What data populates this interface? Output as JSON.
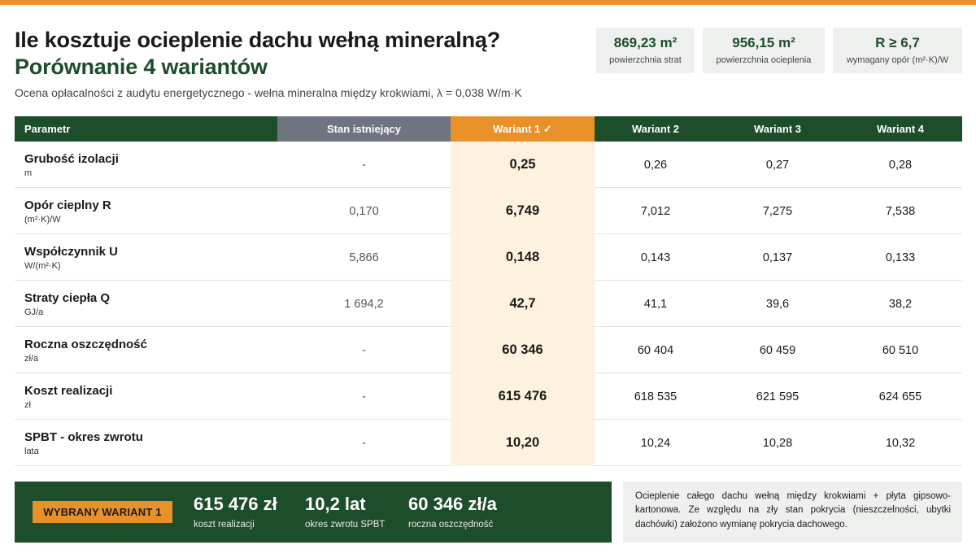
{
  "header": {
    "title": "Ile kosztuje ocieplenie dachu wełną mineralną?",
    "subtitle_title": "Porównanie 4 wariantów",
    "description": "Ocena opłacalności z audytu energetycznego - wełna mineralna między krokwiami, λ = 0,038 W/m·K"
  },
  "stats": [
    {
      "value": "869,23 m²",
      "label": "powierzchnia strat"
    },
    {
      "value": "956,15 m²",
      "label": "powierzchnia ocieplenia"
    },
    {
      "value": "R ≥ 6,7",
      "label": "wymagany opór (m²·K)/W"
    }
  ],
  "table": {
    "headers": {
      "param": "Parametr",
      "stan": "Stan istniejący",
      "w1": "Wariant 1 ✓",
      "w2": "Wariant 2",
      "w3": "Wariant 3",
      "w4": "Wariant 4"
    },
    "rows": [
      {
        "name": "Grubość izolacji",
        "unit": "m",
        "stan": "-",
        "w1": "0,25",
        "w2": "0,26",
        "w3": "0,27",
        "w4": "0,28"
      },
      {
        "name": "Opór cieplny R",
        "unit": "(m²·K)/W",
        "stan": "0,170",
        "w1": "6,749",
        "w2": "7,012",
        "w3": "7,275",
        "w4": "7,538"
      },
      {
        "name": "Współczynnik U",
        "unit": "W/(m²·K)",
        "stan": "5,866",
        "w1": "0,148",
        "w2": "0,143",
        "w3": "0,137",
        "w4": "0,133"
      },
      {
        "name": "Straty ciepła Q",
        "unit": "GJ/a",
        "stan": "1 694,2",
        "w1": "42,7",
        "w2": "41,1",
        "w3": "39,6",
        "w4": "38,2"
      },
      {
        "name": "Roczna oszczędność",
        "unit": "zł/a",
        "stan": "-",
        "w1": "60 346",
        "w2": "60 404",
        "w3": "60 459",
        "w4": "60 510"
      },
      {
        "name": "Koszt realizacji",
        "unit": "zł",
        "stan": "-",
        "w1": "615 476",
        "w2": "618 535",
        "w3": "621 595",
        "w4": "624 655"
      },
      {
        "name": "SPBT - okres zwrotu",
        "unit": "lata",
        "stan": "-",
        "w1": "10,20",
        "w2": "10,24",
        "w3": "10,28",
        "w4": "10,32"
      }
    ]
  },
  "summary": {
    "badge": "WYBRANY WARIANT 1",
    "items": [
      {
        "value": "615 476 zł",
        "label": "koszt realizacji"
      },
      {
        "value": "10,2 lat",
        "label": "okres zwrotu SPBT"
      },
      {
        "value": "60 346 zł/a",
        "label": "roczna oszczędność"
      }
    ]
  },
  "note": "Ocieplenie całego dachu wełną między krokwiami + płyta gipsowo-kartonowa. Ze względu na zły stan pokrycia (nieszczelności, ubytki dachówki) założono wymianę pokrycia dachowego.",
  "colors": {
    "accent": "#e8912b",
    "brand_green": "#1e4d2b",
    "existing_gray": "#6e7480",
    "highlight_bg": "#fdf1df"
  }
}
